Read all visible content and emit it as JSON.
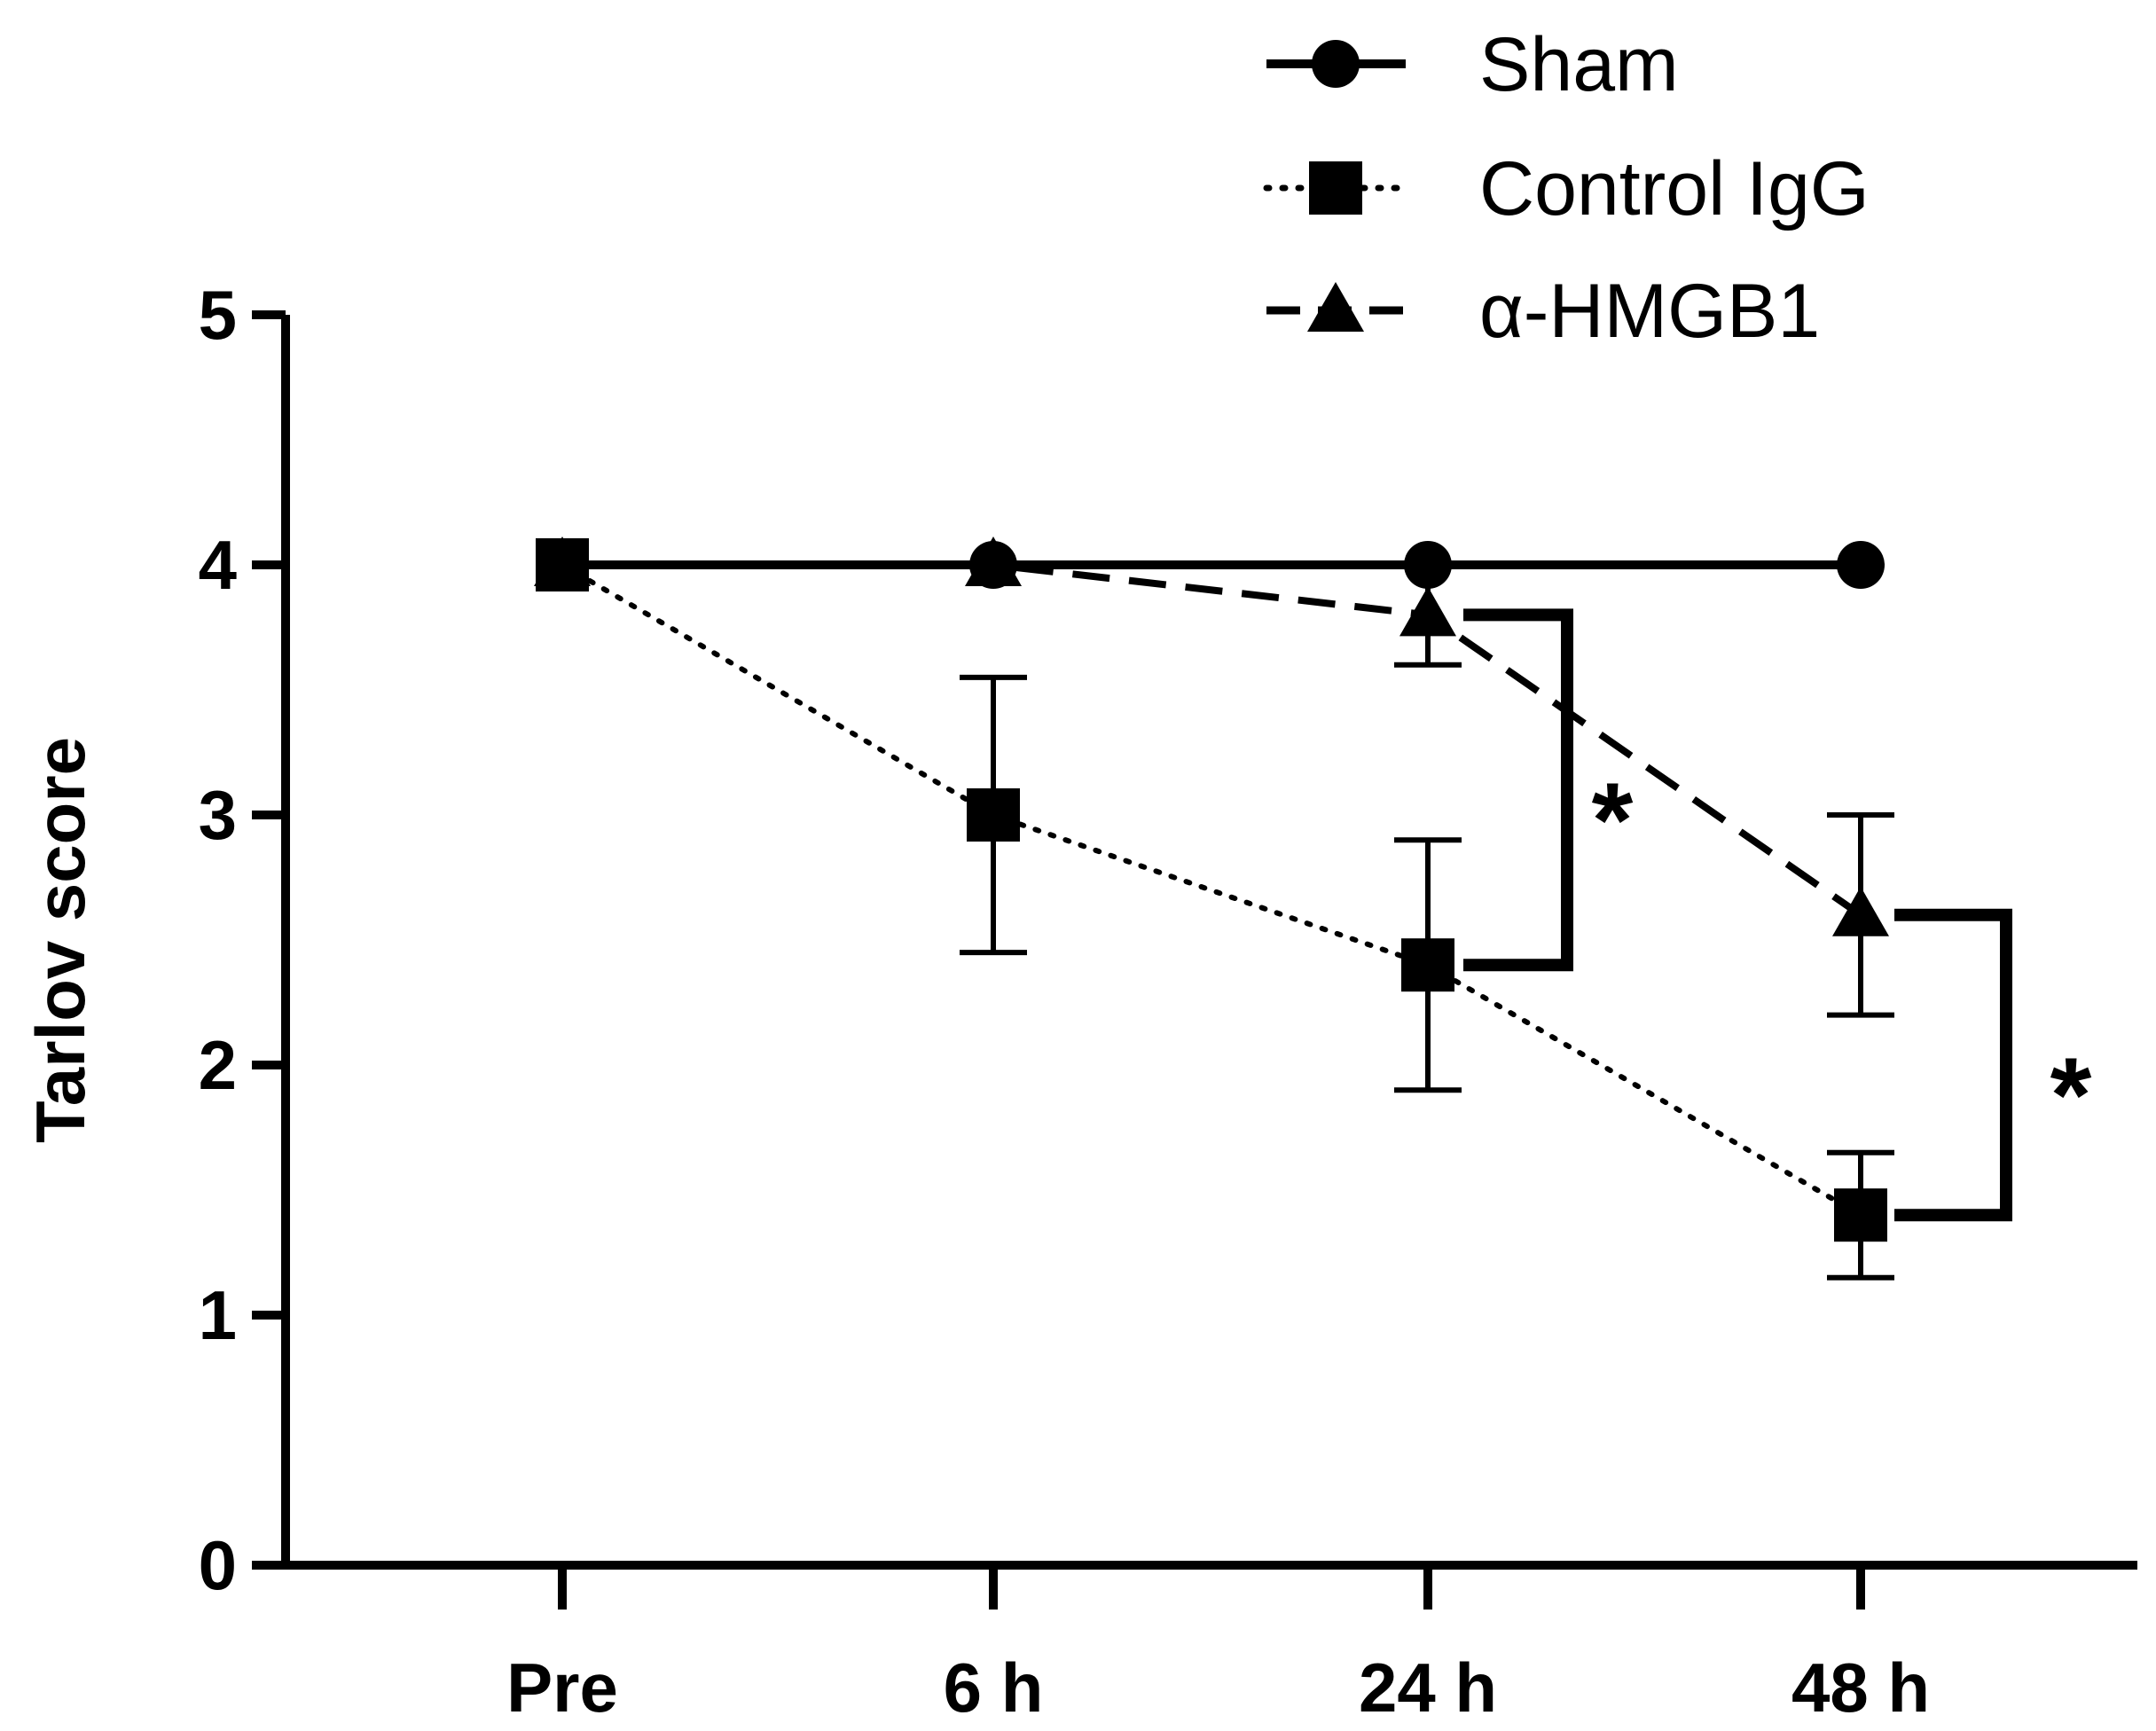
{
  "chart_data": {
    "type": "line",
    "title": "",
    "xlabel": "",
    "ylabel": "Tarlov score",
    "categories": [
      "Pre",
      "6 h",
      "24 h",
      "48 h"
    ],
    "ylim": [
      0,
      5
    ],
    "yticks": [
      "0",
      "1",
      "2",
      "3",
      "4",
      "5"
    ],
    "grid": false,
    "legend_position": "top-right",
    "series": [
      {
        "name": "Sham",
        "line_style": "solid",
        "marker": "circle",
        "values": [
          4,
          4,
          4,
          4
        ],
        "errors": [
          0,
          0,
          0,
          0
        ]
      },
      {
        "name": "Control IgG",
        "line_style": "dotted",
        "marker": "square",
        "values": [
          4,
          3.0,
          2.4,
          1.4
        ],
        "errors": [
          0,
          0.55,
          0.5,
          0.25
        ]
      },
      {
        "name": "α-HMGB1",
        "line_style": "dashed",
        "marker": "triangle",
        "values": [
          4,
          4.0,
          3.8,
          2.6
        ],
        "errors": [
          0,
          0,
          0.2,
          0.4
        ]
      }
    ],
    "annotations": [
      {
        "text": "*",
        "category": "24 h",
        "between": [
          "α-HMGB1",
          "Control IgG"
        ]
      },
      {
        "text": "*",
        "category": "48 h",
        "between": [
          "α-HMGB1",
          "Control IgG"
        ]
      }
    ]
  }
}
